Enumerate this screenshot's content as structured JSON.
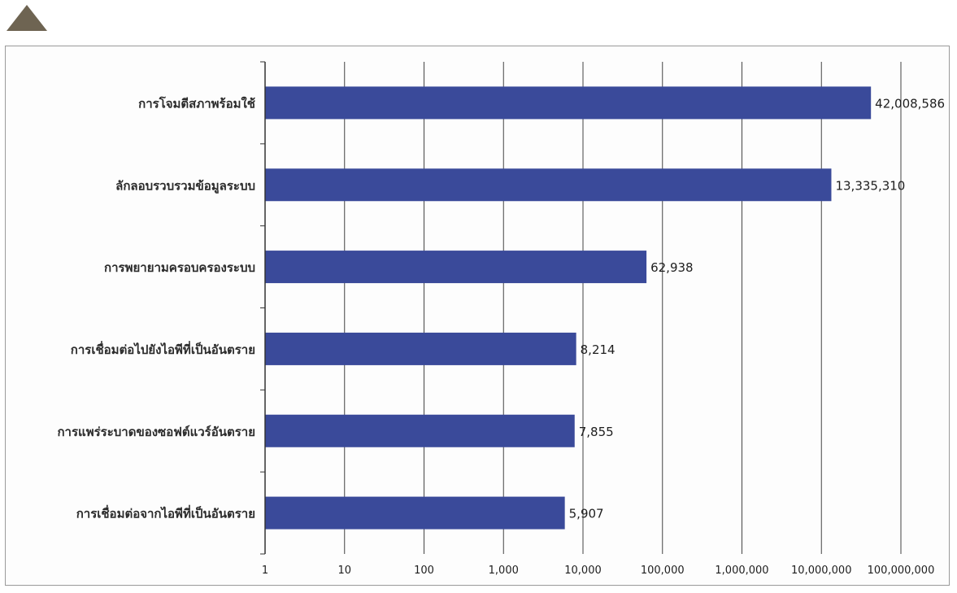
{
  "chart_data": {
    "type": "bar",
    "orientation": "horizontal",
    "x_scale": "log",
    "xlim": [
      1,
      100000000
    ],
    "grid": true,
    "legend": "none",
    "bar_color": "#3a4a9a",
    "categories": [
      "การโจมตีสภาพร้อมใช้",
      "ลักลอบรวบรวมข้อมูลระบบ",
      "การพยายามครอบครองระบบ",
      "การเชื่อมต่อไปยังไอพีที่เป็นอันตราย",
      "การแพร่ระบาดของซอฟต์แวร์อันตราย",
      "การเชื่อมต่อจากไอพีที่เป็นอันตราย"
    ],
    "values": [
      42008586,
      13335310,
      62938,
      8214,
      7855,
      5907
    ],
    "value_labels": [
      "42,008,586",
      "13,335,310",
      "62,938",
      "8,214",
      "7,855",
      "5,907"
    ],
    "x_ticks": [
      1,
      10,
      100,
      1000,
      10000,
      100000,
      1000000,
      10000000,
      100000000
    ],
    "x_tick_labels": [
      "1",
      "10",
      "100",
      "1,000",
      "10,000",
      "100,000",
      "1,000,000",
      "10,000,000",
      "100,000,000"
    ]
  },
  "marker": {
    "icon": "triangle-icon",
    "color": "#6e6452"
  }
}
